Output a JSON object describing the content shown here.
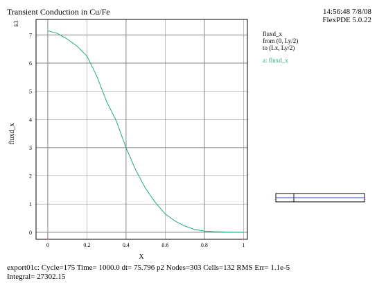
{
  "title": "Transient Conduction in Cu/Fe",
  "timestamp": "14:56:48 7/8/08",
  "version": "FlexPDE 5.0.22",
  "legend": {
    "lines": [
      "fluxd_x",
      "from (0, Ly/2)",
      "to (Lx, Ly/2)"
    ],
    "series_label": "a: fluxd_x"
  },
  "footer": {
    "line1": "export01c:  Cycle=175  Time= 1000.0  dt= 75.796  p2  Nodes=303 Cells=132 RMS Err= 1.1e-5",
    "line2": "Integral=  27302.15"
  },
  "colors": {
    "curve": "#1faa7c",
    "grid": "#808080",
    "marker": "#d03030",
    "domain_line": "#3040c0"
  },
  "chart_data": {
    "type": "line",
    "xlabel": "X",
    "ylabel": "fluxd_x",
    "y_scale_label": "E3",
    "xlim": [
      -0.06,
      1.02
    ],
    "ylim": [
      -0.25,
      7.55
    ],
    "x_ticks": [
      "0",
      "0.2",
      "0.4",
      "0.6",
      "0.8",
      "1"
    ],
    "y_ticks": [
      "0",
      "1",
      "2",
      "3",
      "4",
      "5",
      "6",
      "7"
    ],
    "grid": true,
    "series": [
      {
        "name": "a: fluxd_x",
        "x": [
          0,
          0.05,
          0.1,
          0.15,
          0.2,
          0.25,
          0.3,
          0.35,
          0.4,
          0.45,
          0.5,
          0.55,
          0.6,
          0.65,
          0.7,
          0.75,
          0.8,
          0.85,
          0.9,
          0.95,
          1.0
        ],
        "y": [
          7.15,
          7.05,
          6.85,
          6.6,
          6.25,
          5.55,
          4.65,
          3.95,
          3.0,
          2.2,
          1.55,
          1.05,
          0.65,
          0.4,
          0.22,
          0.1,
          0.04,
          0.02,
          0.01,
          0.0,
          0.0
        ]
      }
    ],
    "markers": [
      {
        "x": 0,
        "y": -0.25
      },
      {
        "x": 1,
        "y": -0.25
      }
    ]
  }
}
